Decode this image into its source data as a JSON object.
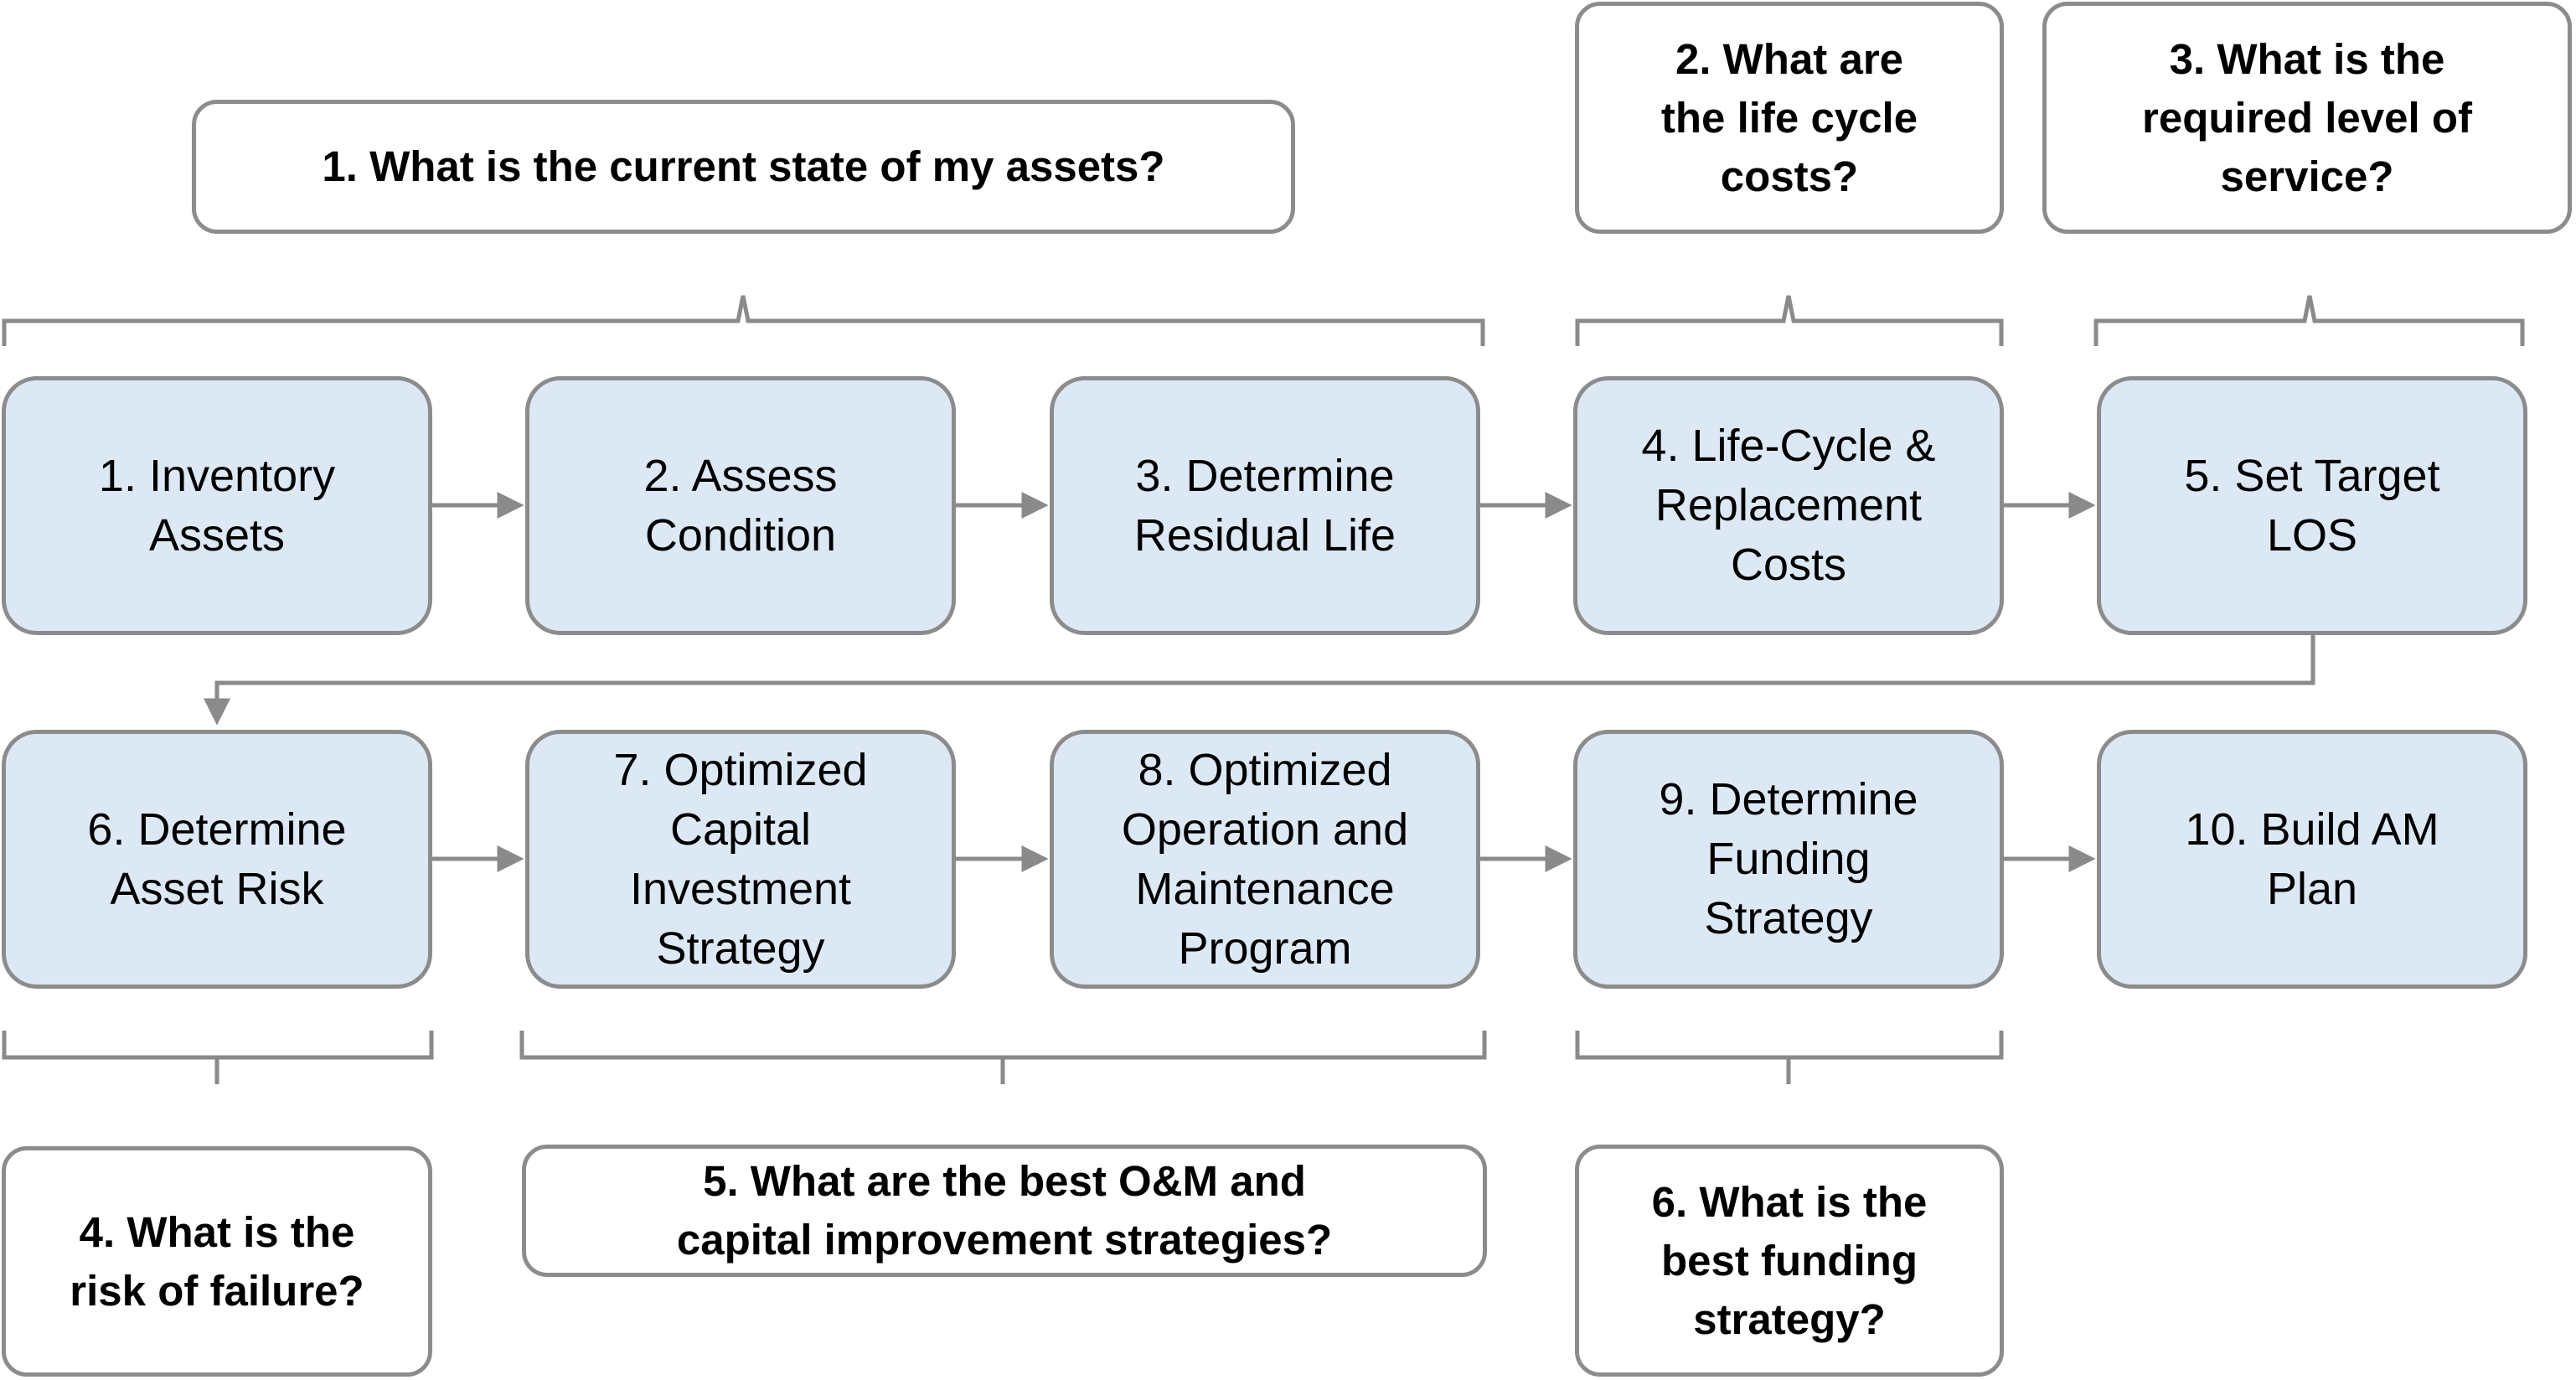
{
  "colors": {
    "step_fill": "#dde8f5",
    "border": "#8c8c8c",
    "connector": "#8a8a8a",
    "background": "#ffffff"
  },
  "questions": [
    {
      "id": "q1",
      "text": "1. What is the current state of my assets?"
    },
    {
      "id": "q2",
      "text": "2. What are\nthe life cycle\ncosts?"
    },
    {
      "id": "q3",
      "text": "3. What is the\nrequired level of\nservice?"
    },
    {
      "id": "q4",
      "text": "4. What is the\nrisk of failure?"
    },
    {
      "id": "q5",
      "text": "5. What are the best O&M and\ncapital improvement strategies?"
    },
    {
      "id": "q6",
      "text": "6. What is the\nbest funding\nstrategy?"
    }
  ],
  "steps": [
    {
      "id": "s1",
      "text": "1. Inventory\nAssets"
    },
    {
      "id": "s2",
      "text": "2. Assess\nCondition"
    },
    {
      "id": "s3",
      "text": "3. Determine\nResidual Life"
    },
    {
      "id": "s4",
      "text": "4. Life-Cycle &\nReplacement\nCosts"
    },
    {
      "id": "s5",
      "text": "5. Set Target\nLOS"
    },
    {
      "id": "s6",
      "text": "6. Determine\nAsset Risk"
    },
    {
      "id": "s7",
      "text": "7. Optimized\nCapital\nInvestment\nStrategy"
    },
    {
      "id": "s8",
      "text": "8. Optimized\nOperation and\nMaintenance\nProgram"
    },
    {
      "id": "s9",
      "text": "9. Determine\nFunding\nStrategy"
    },
    {
      "id": "s10",
      "text": "10. Build AM\nPlan"
    }
  ]
}
